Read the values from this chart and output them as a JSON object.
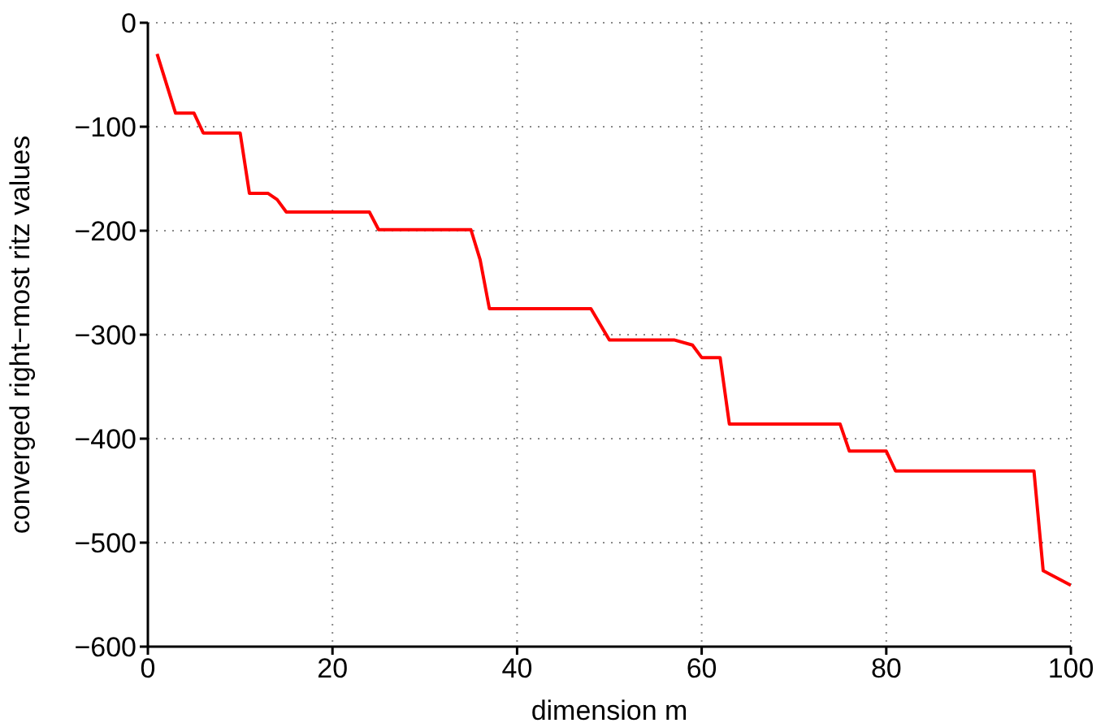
{
  "chart_data": {
    "type": "line",
    "xlabel": "dimension m",
    "ylabel": "converged right−most ritz values",
    "x": [
      1,
      3,
      5,
      6,
      10,
      11,
      13,
      14,
      15,
      24,
      25,
      35,
      36,
      37,
      48,
      50,
      57,
      59,
      60,
      62,
      63,
      75,
      76,
      80,
      81,
      96,
      97,
      100
    ],
    "series": [
      {
        "color": "#ff0000",
        "values": [
          -30,
          -87,
          -87,
          -106,
          -106,
          -164,
          -164,
          -170,
          -182,
          -182,
          -199,
          -199,
          -228,
          -275,
          -275,
          -305,
          -305,
          -310,
          -322,
          -322,
          -386,
          -386,
          -412,
          -412,
          -431,
          -431,
          -527,
          -541
        ]
      }
    ],
    "xlim": [
      0,
      100
    ],
    "xticks": [
      0,
      20,
      40,
      60,
      80,
      100
    ],
    "ylim": [
      -600,
      0
    ],
    "yticks": [
      {
        "value": -600,
        "label": "−600"
      },
      {
        "value": -500,
        "label": "−500"
      },
      {
        "value": -400,
        "label": "−400"
      },
      {
        "value": -300,
        "label": "−300"
      },
      {
        "value": -200,
        "label": "−200"
      },
      {
        "value": -100,
        "label": "−100"
      },
      0
    ],
    "grid": true,
    "marker": "none",
    "line_style": "solid"
  }
}
